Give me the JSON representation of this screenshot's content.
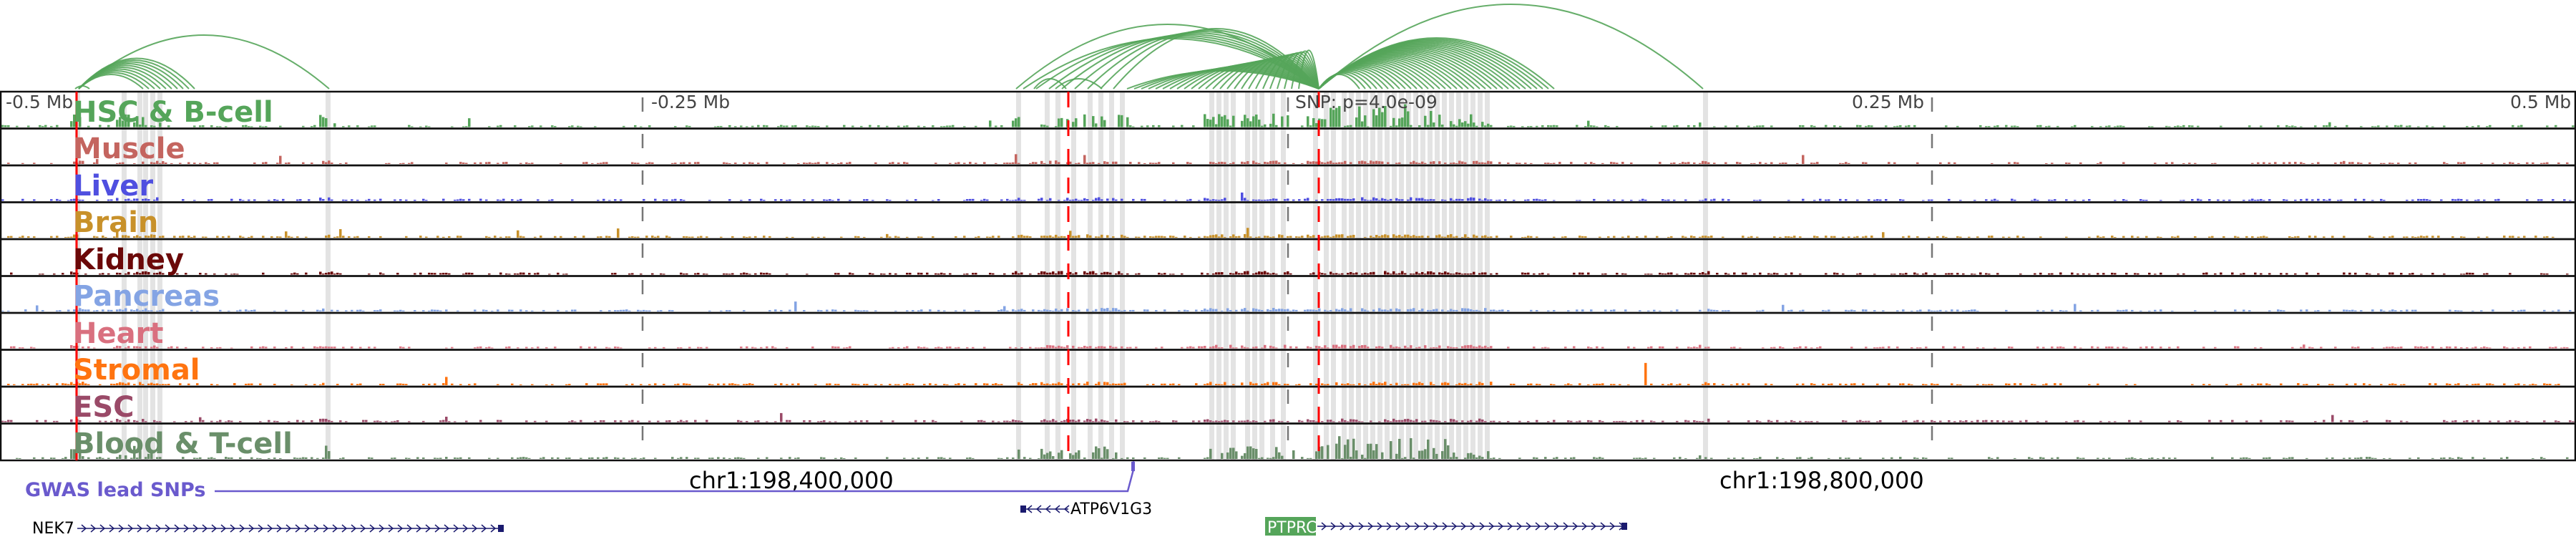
{
  "axis": {
    "ticks": [
      "-0.5 Mb",
      "-0.25 Mb",
      "0.25 Mb",
      "0.5 Mb"
    ]
  },
  "snp_label": "SNP: p=4.0e-09",
  "tracks": [
    {
      "label": "HSC & B-cell",
      "color": "#55a55a"
    },
    {
      "label": "Muscle",
      "color": "#c4655f"
    },
    {
      "label": "Liver",
      "color": "#4f4fe0"
    },
    {
      "label": "Brain",
      "color": "#c8912a"
    },
    {
      "label": "Kidney",
      "color": "#6b0808"
    },
    {
      "label": "Pancreas",
      "color": "#84a4e4"
    },
    {
      "label": "Heart",
      "color": "#d9707f"
    },
    {
      "label": "Stromal",
      "color": "#ff7410"
    },
    {
      "label": "ESC",
      "color": "#9a4a68"
    },
    {
      "label": "Blood & T-cell",
      "color": "#6a8f6a"
    }
  ],
  "coordinates": [
    "chr1:198,400,000",
    "chr1:198,800,000"
  ],
  "gwas": {
    "label": "GWAS lead SNPs",
    "color": "#6a5acd"
  },
  "genes": [
    {
      "name": "NEK7",
      "strand": "+"
    },
    {
      "name": "ATP6V1G3",
      "strand": "-"
    },
    {
      "name": "PTPRC",
      "strand": "+",
      "highlight": "#55a55a"
    }
  ],
  "arc_color": "#55a55a"
}
